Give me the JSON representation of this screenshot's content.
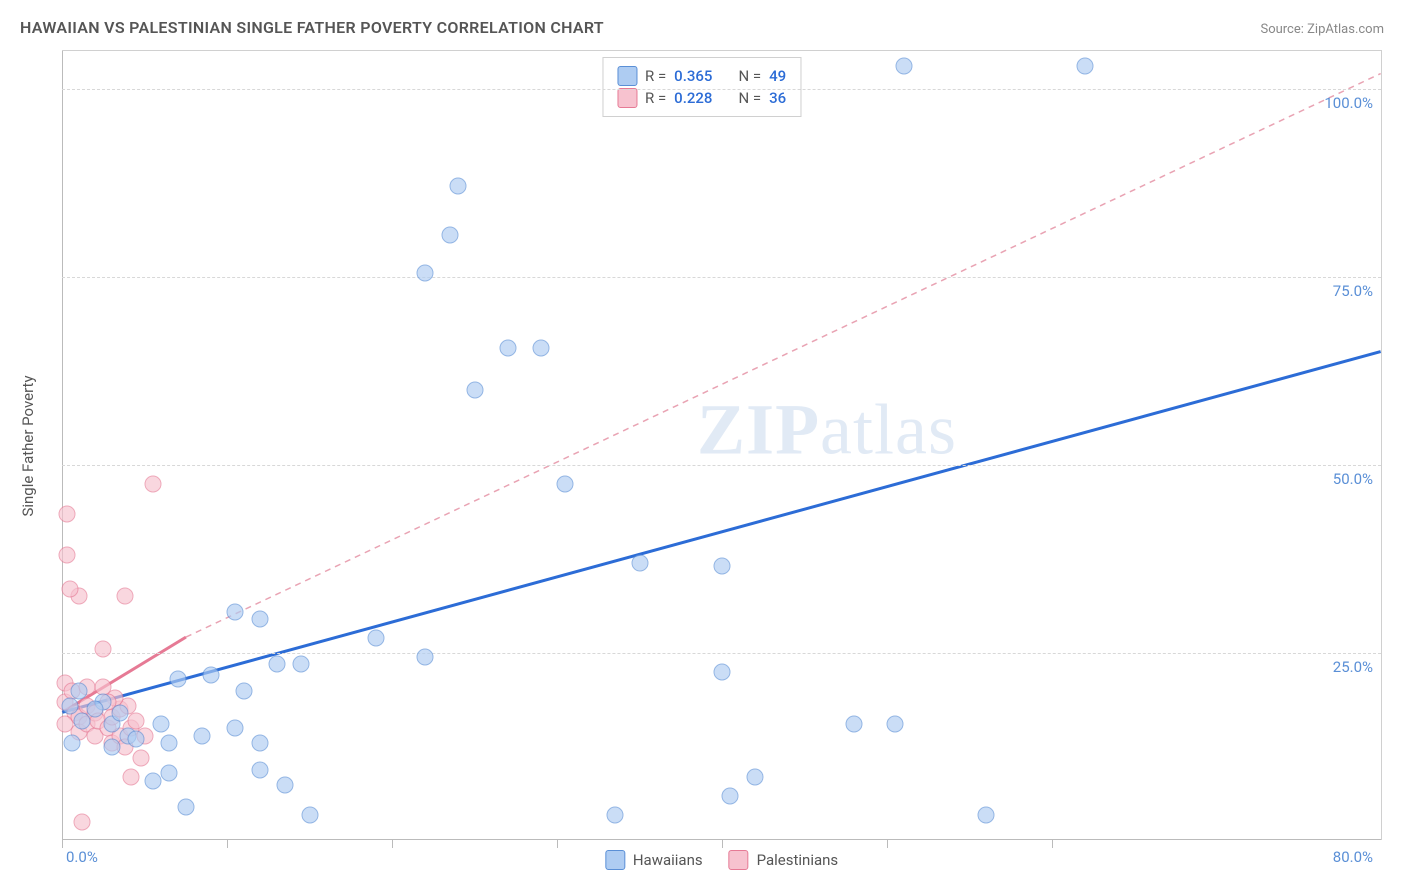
{
  "title": "HAWAIIAN VS PALESTINIAN SINGLE FATHER POVERTY CORRELATION CHART",
  "source": "Source: ZipAtlas.com",
  "watermark_a": "ZIP",
  "watermark_b": "atlas",
  "axes": {
    "ylabel": "Single Father Poverty",
    "xmin": 0,
    "xmax": 80,
    "ymin": 0,
    "ymax": 105,
    "x_origin_label": "0.0%",
    "x_max_label": "80.0%",
    "y_labels": [
      {
        "v": 25,
        "text": "25.0%"
      },
      {
        "v": 50,
        "text": "50.0%"
      },
      {
        "v": 75,
        "text": "75.0%"
      },
      {
        "v": 100,
        "text": "100.0%"
      }
    ],
    "x_ticks": [
      0,
      10,
      20,
      30,
      40,
      50,
      60
    ]
  },
  "legend_top": {
    "series": [
      {
        "swatch": "h",
        "r_label": "R =",
        "r_value": "0.365",
        "n_label": "N =",
        "n_value": "49"
      },
      {
        "swatch": "p",
        "r_label": "R =",
        "r_value": "0.228",
        "n_label": "N =",
        "n_value": "36"
      }
    ]
  },
  "legend_bottom": {
    "items": [
      {
        "swatch": "h",
        "label": "Hawaiians"
      },
      {
        "swatch": "p",
        "label": "Palestinians"
      }
    ]
  },
  "colors": {
    "hawaiian_fill": "#aeccf2",
    "hawaiian_stroke": "#5a8fd6",
    "palestinian_fill": "#f7c2cf",
    "palestinian_stroke": "#e67a95",
    "trend_hawaiian": "#2c6cd6",
    "trend_palestinian_solid": "#e67a95",
    "trend_palestinian_dash": "#e9a3b3",
    "grid": "#d8d8d8",
    "axis": "#bbbbbb",
    "text_axis": "#5a8fd6"
  },
  "marker_size": 17,
  "trend_lines": {
    "hawaiian": {
      "x1": 0,
      "y1": 17,
      "x2": 80,
      "y2": 65,
      "stroke_width": 3,
      "dash": null
    },
    "palestinian_solid": {
      "x1": 0,
      "y1": 17,
      "x2": 7.5,
      "y2": 27,
      "stroke_width": 3,
      "dash": null
    },
    "palestinian_dash": {
      "x1": 7.5,
      "y1": 27,
      "x2": 80,
      "y2": 102,
      "stroke_width": 1.5,
      "dash": "6,5"
    }
  },
  "points": {
    "hawaiians": [
      [
        51,
        103
      ],
      [
        62,
        103
      ],
      [
        24,
        87
      ],
      [
        23.5,
        80.5
      ],
      [
        22,
        75.5
      ],
      [
        27,
        65.5
      ],
      [
        29,
        65.5
      ],
      [
        25,
        60
      ],
      [
        30.5,
        47.5
      ],
      [
        35,
        37
      ],
      [
        40,
        36.5
      ],
      [
        12,
        29.5
      ],
      [
        10.5,
        30.5
      ],
      [
        22,
        24.5
      ],
      [
        19,
        27
      ],
      [
        7,
        21.5
      ],
      [
        13,
        23.5
      ],
      [
        14.5,
        23.5
      ],
      [
        11,
        20
      ],
      [
        40,
        22.5
      ],
      [
        48,
        15.5
      ],
      [
        50.5,
        15.5
      ],
      [
        42,
        8.5
      ],
      [
        40.5,
        6
      ],
      [
        56,
        3.5
      ],
      [
        33.5,
        3.5
      ],
      [
        0.5,
        18
      ],
      [
        1,
        20
      ],
      [
        2.5,
        18.5
      ],
      [
        1.2,
        16
      ],
      [
        2,
        17.5
      ],
      [
        0.6,
        13
      ],
      [
        3,
        15.5
      ],
      [
        4,
        14
      ],
      [
        3.5,
        17
      ],
      [
        3,
        12.5
      ],
      [
        4.5,
        13.5
      ],
      [
        6,
        15.5
      ],
      [
        6.5,
        13
      ],
      [
        6.5,
        9
      ],
      [
        8.5,
        14
      ],
      [
        10.5,
        15
      ],
      [
        12,
        13
      ],
      [
        12,
        9.5
      ],
      [
        13.5,
        7.5
      ],
      [
        15,
        3.5
      ],
      [
        7.5,
        4.5
      ],
      [
        5.5,
        8
      ],
      [
        9,
        22
      ]
    ],
    "palestinians": [
      [
        0.3,
        43.5
      ],
      [
        0.3,
        38
      ],
      [
        1,
        32.5
      ],
      [
        0.5,
        33.5
      ],
      [
        3.8,
        32.5
      ],
      [
        5.5,
        47.5
      ],
      [
        2.5,
        25.5
      ],
      [
        0.2,
        21
      ],
      [
        0.2,
        18.5
      ],
      [
        0.6,
        20
      ],
      [
        0.8,
        17
      ],
      [
        0.2,
        15.5
      ],
      [
        1,
        16.5
      ],
      [
        1,
        14.5
      ],
      [
        1.5,
        18
      ],
      [
        1.5,
        15.5
      ],
      [
        2,
        17
      ],
      [
        2,
        14
      ],
      [
        2.2,
        16
      ],
      [
        2.5,
        20.5
      ],
      [
        2.8,
        15
      ],
      [
        3,
        16.5
      ],
      [
        3,
        13
      ],
      [
        3.5,
        14
      ],
      [
        3.5,
        17.5
      ],
      [
        3.8,
        12.5
      ],
      [
        4.2,
        15
      ],
      [
        4,
        18
      ],
      [
        4.5,
        16
      ],
      [
        4.8,
        11
      ],
      [
        5,
        14
      ],
      [
        3.2,
        19
      ],
      [
        4.2,
        8.5
      ],
      [
        1.2,
        2.5
      ],
      [
        1.5,
        20.5
      ],
      [
        2.8,
        18.5
      ]
    ]
  }
}
